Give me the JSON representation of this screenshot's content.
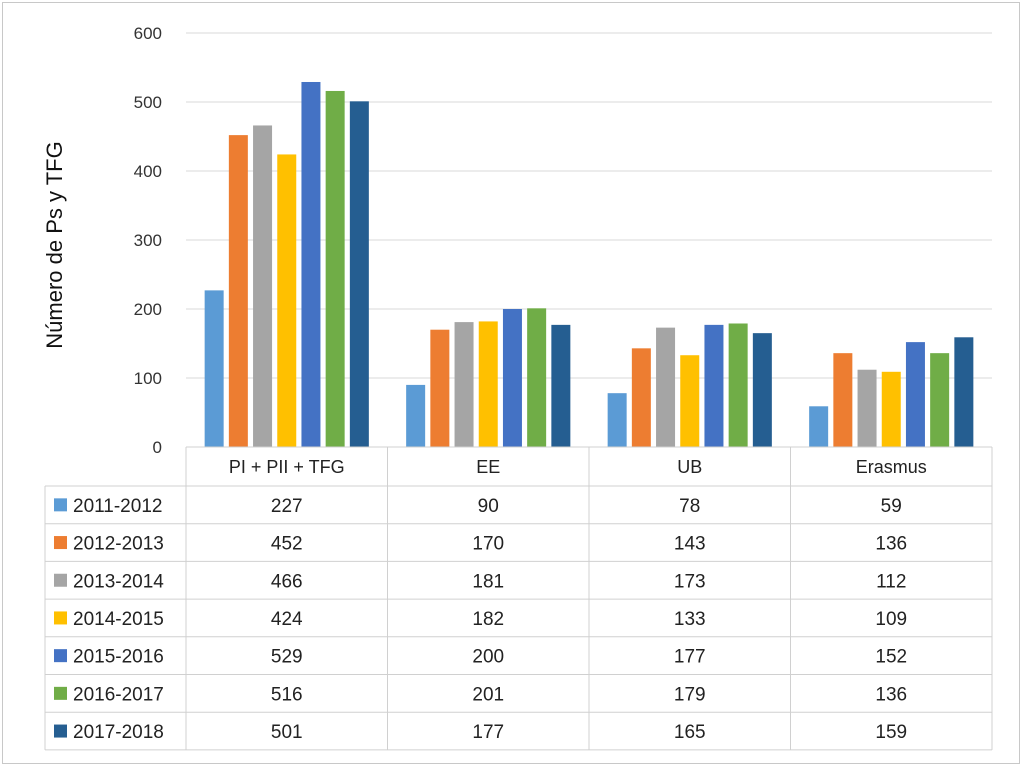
{
  "chart_data": {
    "type": "bar",
    "title": "",
    "xlabel": "",
    "ylabel": "Número de Ps y TFG",
    "ylim": [
      0,
      600
    ],
    "yticks": [
      0,
      100,
      200,
      300,
      400,
      500,
      600
    ],
    "grid": true,
    "legend": "data-table",
    "categories": [
      "PI + PII + TFG",
      "EE",
      "UB",
      "Erasmus"
    ],
    "series": [
      {
        "name": "2011-2012",
        "color": "#5B9BD5",
        "values": [
          227,
          90,
          78,
          59
        ]
      },
      {
        "name": "2012-2013",
        "color": "#ED7D31",
        "values": [
          452,
          170,
          143,
          136
        ]
      },
      {
        "name": "2013-2014",
        "color": "#A5A5A5",
        "values": [
          466,
          181,
          173,
          112
        ]
      },
      {
        "name": "2014-2015",
        "color": "#FFC000",
        "values": [
          424,
          182,
          133,
          109
        ]
      },
      {
        "name": "2015-2016",
        "color": "#4472C4",
        "values": [
          529,
          200,
          177,
          152
        ]
      },
      {
        "name": "2016-2017",
        "color": "#70AD47",
        "values": [
          516,
          201,
          179,
          136
        ]
      },
      {
        "name": "2017-2018",
        "color": "#255E91",
        "values": [
          501,
          177,
          165,
          159
        ]
      }
    ]
  }
}
